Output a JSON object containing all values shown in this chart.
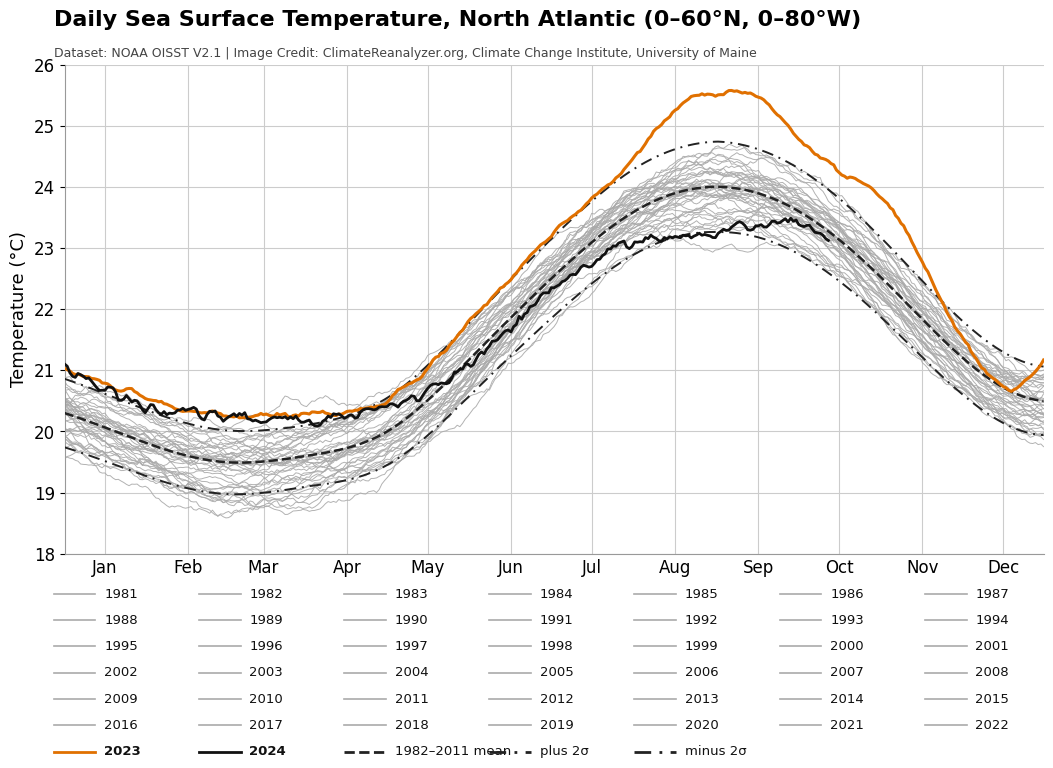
{
  "title": "Daily Sea Surface Temperature, North Atlantic (0–60°N, 0–80°W)",
  "subtitle": "Dataset: NOAA OISST V2.1 | Image Credit: ClimateReanalyzer.org, Climate Change Institute, University of Maine",
  "ylabel": "Temperature (°C)",
  "ylim": [
    18,
    26
  ],
  "yticks": [
    18,
    19,
    20,
    21,
    22,
    23,
    24,
    25,
    26
  ],
  "months": [
    "Jan",
    "Feb",
    "Mar",
    "Apr",
    "May",
    "Jun",
    "Jul",
    "Aug",
    "Sep",
    "Oct",
    "Nov",
    "Dec"
  ],
  "gray_color": "#aaaaaa",
  "orange_color": "#e07000",
  "black_color": "#111111",
  "mean_color": "#222222",
  "background_color": "#ffffff",
  "grid_color": "#cccccc",
  "years": [
    1981,
    1982,
    1983,
    1984,
    1985,
    1986,
    1987,
    1988,
    1989,
    1990,
    1991,
    1992,
    1993,
    1994,
    1995,
    1996,
    1997,
    1998,
    1999,
    2000,
    2001,
    2002,
    2003,
    2004,
    2005,
    2006,
    2007,
    2008,
    2009,
    2010,
    2011,
    2012,
    2013,
    2014,
    2015,
    2016,
    2017,
    2018,
    2019,
    2020,
    2021,
    2022
  ]
}
